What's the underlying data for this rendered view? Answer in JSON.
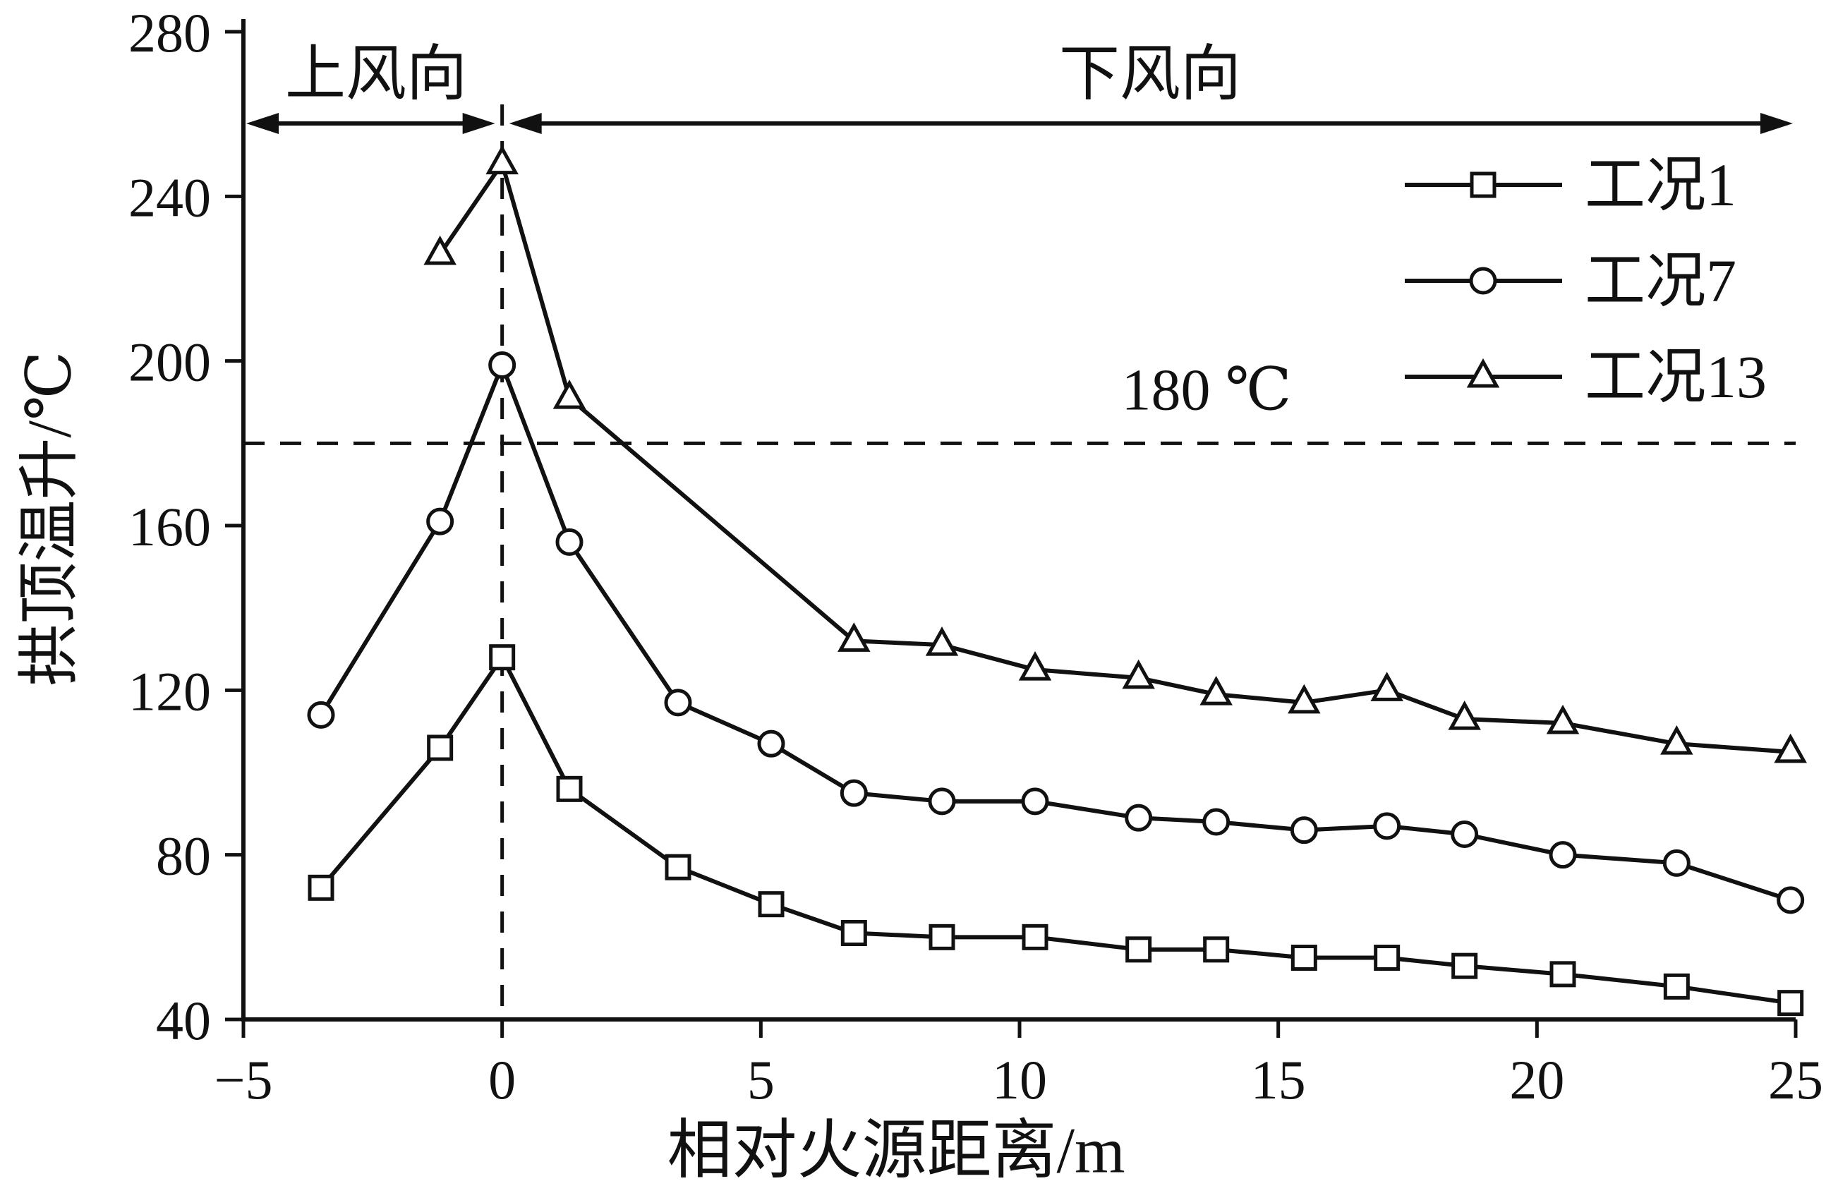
{
  "chart_data": {
    "type": "line",
    "title": "",
    "xlabel": "相对火源距离/m",
    "ylabel": "拱顶温升/℃",
    "xlim": [
      -5,
      25
    ],
    "ylim": [
      40,
      280
    ],
    "grid": false,
    "legend_position": "top-right",
    "xticks": {
      "values": [
        -5,
        0,
        5,
        10,
        15,
        20,
        25
      ],
      "labels": [
        "−5",
        "0",
        "5",
        "10",
        "15",
        "20",
        "25"
      ]
    },
    "yticks": {
      "values": [
        40,
        80,
        120,
        160,
        200,
        240,
        280
      ],
      "labels": [
        "40",
        "80",
        "120",
        "160",
        "200",
        "240",
        "280"
      ]
    },
    "annotations": {
      "upwind_label": "上风向",
      "downwind_label": "下风向",
      "threshold_label": "180 ℃",
      "threshold_value": 180,
      "fire_source_line_x": 0
    },
    "color": "#111111",
    "series": [
      {
        "name": "工况1",
        "marker": "square",
        "points": [
          [
            -3.5,
            72
          ],
          [
            -1.2,
            106
          ],
          [
            0,
            128
          ],
          [
            1.3,
            96
          ],
          [
            3.4,
            77
          ],
          [
            5.2,
            68
          ],
          [
            6.8,
            61
          ],
          [
            8.5,
            60
          ],
          [
            10.3,
            60
          ],
          [
            12.3,
            57
          ],
          [
            13.8,
            57
          ],
          [
            15.5,
            55
          ],
          [
            17.1,
            55
          ],
          [
            18.6,
            53
          ],
          [
            20.5,
            51
          ],
          [
            22.7,
            48
          ],
          [
            24.9,
            44
          ]
        ]
      },
      {
        "name": "工况7",
        "marker": "circle",
        "points": [
          [
            -3.5,
            114
          ],
          [
            -1.2,
            161
          ],
          [
            0,
            199
          ],
          [
            1.3,
            156
          ],
          [
            3.4,
            117
          ],
          [
            5.2,
            107
          ],
          [
            6.8,
            95
          ],
          [
            8.5,
            93
          ],
          [
            10.3,
            93
          ],
          [
            12.3,
            89
          ],
          [
            13.8,
            88
          ],
          [
            15.5,
            86
          ],
          [
            17.1,
            87
          ],
          [
            18.6,
            85
          ],
          [
            20.5,
            80
          ],
          [
            22.7,
            78
          ],
          [
            24.9,
            69
          ]
        ]
      },
      {
        "name": "工况13",
        "marker": "triangle",
        "points": [
          [
            -1.2,
            226
          ],
          [
            0,
            248
          ],
          [
            1.3,
            191
          ],
          [
            6.8,
            132
          ],
          [
            8.5,
            131
          ],
          [
            10.3,
            125
          ],
          [
            12.3,
            123
          ],
          [
            13.8,
            119
          ],
          [
            15.5,
            117
          ],
          [
            17.1,
            120
          ],
          [
            18.6,
            113
          ],
          [
            20.5,
            112
          ],
          [
            22.7,
            107
          ],
          [
            24.9,
            105
          ]
        ]
      }
    ]
  }
}
